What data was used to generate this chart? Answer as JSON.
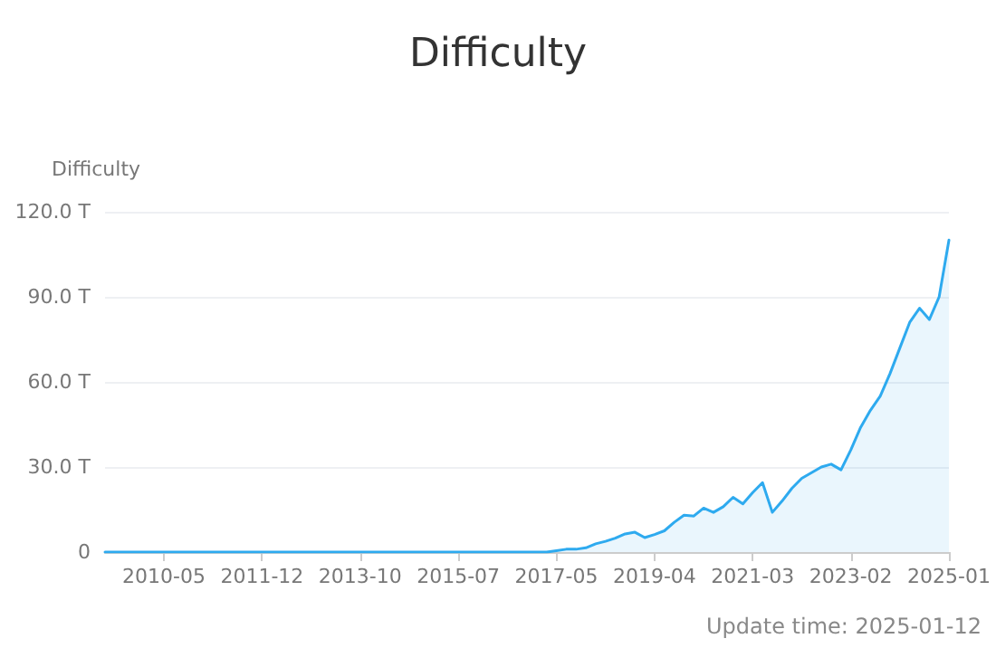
{
  "chart_data": {
    "type": "area",
    "title": "Difficulty",
    "ylabel": "Difficulty",
    "annotations": [
      "Update time: 2025-01-12"
    ],
    "categories": [
      null,
      null,
      null,
      null,
      null,
      null,
      "2010-05",
      null,
      null,
      null,
      null,
      null,
      null,
      null,
      null,
      null,
      "2011-12",
      null,
      null,
      null,
      null,
      null,
      null,
      null,
      null,
      null,
      "2013-10",
      null,
      null,
      null,
      null,
      null,
      null,
      null,
      null,
      null,
      "2015-07",
      null,
      null,
      null,
      null,
      null,
      null,
      null,
      null,
      null,
      "2017-05",
      null,
      null,
      null,
      null,
      null,
      null,
      null,
      null,
      null,
      "2019-04",
      null,
      null,
      null,
      null,
      null,
      null,
      null,
      null,
      null,
      "2021-03",
      null,
      null,
      null,
      null,
      null,
      null,
      null,
      null,
      null,
      "2023-02",
      null,
      null,
      null,
      null,
      null,
      null,
      null,
      null,
      null,
      "2025-01"
    ],
    "series": [
      {
        "color": "#2eaaef",
        "values": [
          0,
          0,
          0,
          0,
          0,
          0,
          0,
          0,
          0,
          0,
          0,
          0,
          0,
          0,
          0,
          0,
          0,
          0,
          0,
          0,
          0,
          0,
          0,
          0,
          0,
          0,
          0,
          0,
          0,
          0,
          0,
          0,
          0,
          0,
          0,
          0,
          0,
          0,
          0,
          0,
          0,
          0,
          0,
          0,
          0,
          0,
          0.5,
          1,
          1,
          1.5,
          2.9,
          3.8,
          4.9,
          6.4,
          7.0,
          5.1,
          6.2,
          7.5,
          10.5,
          13.0,
          12.7,
          15.5,
          14.0,
          16.0,
          19.3,
          17.0,
          21.0,
          24.5,
          14.0,
          18.0,
          22.5,
          26.0,
          28.0,
          30.0,
          31.0,
          29.0,
          36.0,
          44.0,
          50.0,
          55.0,
          63.0,
          72.0,
          81.0,
          86.0,
          82.0,
          90.0,
          110.0
        ]
      }
    ],
    "ylim": [
      0,
      120
    ],
    "yticks": [
      {
        "value": 0,
        "label": "0"
      },
      {
        "value": 30,
        "label": "30.0 T"
      },
      {
        "value": 60,
        "label": "60.0 T"
      },
      {
        "value": 90,
        "label": "90.0 T"
      },
      {
        "value": 120,
        "label": "120.0 T"
      }
    ],
    "grid": "y",
    "marker": "none",
    "line_style": "solid"
  }
}
